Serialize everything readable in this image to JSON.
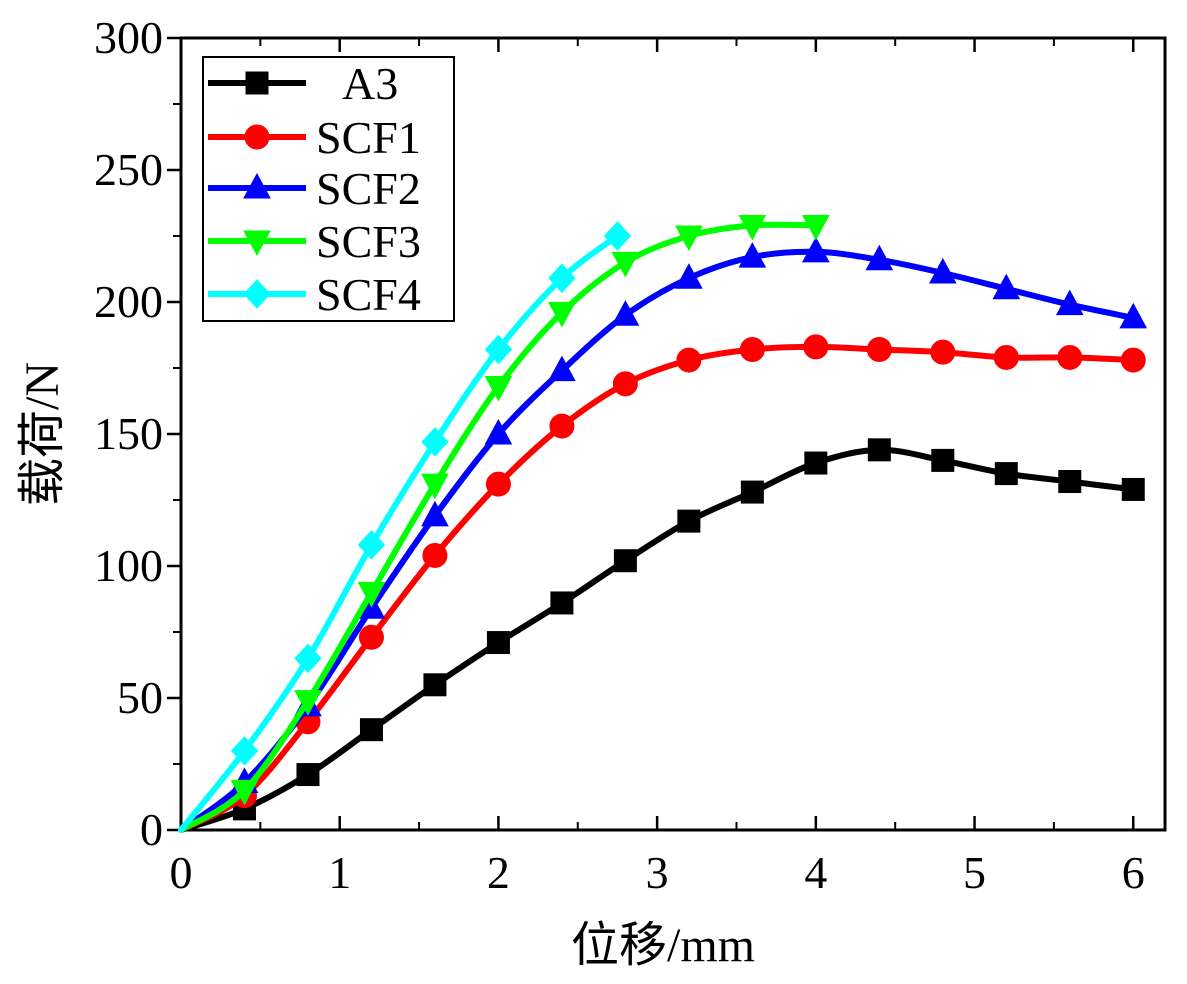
{
  "chart_data": {
    "type": "line",
    "title": "",
    "xlabel": "位移/mm",
    "ylabel": "载荷/N",
    "xlim": [
      0,
      6.2
    ],
    "ylim": [
      0,
      300
    ],
    "xticks": [
      0,
      1,
      2,
      3,
      4,
      5,
      6
    ],
    "yticks": [
      0,
      50,
      100,
      150,
      200,
      250,
      300
    ],
    "xtick_labels": [
      "0",
      "1",
      "2",
      "3",
      "4",
      "5",
      "6"
    ],
    "ytick_labels": [
      "0",
      "50",
      "100",
      "150",
      "200",
      "250",
      "300"
    ],
    "grid": false,
    "legend_position": "top-left",
    "series": [
      {
        "name": "A3",
        "color": "#000000",
        "marker": "square",
        "x": [
          0,
          0.4,
          0.8,
          1.2,
          1.6,
          2.0,
          2.4,
          2.8,
          3.2,
          3.6,
          4.0,
          4.4,
          4.8,
          5.2,
          5.6,
          6.0
        ],
        "y": [
          0,
          8,
          21,
          38,
          55,
          71,
          86,
          102,
          117,
          128,
          139,
          144,
          140,
          135,
          132,
          129
        ]
      },
      {
        "name": "SCF1",
        "color": "#ff0000",
        "marker": "circle",
        "x": [
          0,
          0.4,
          0.8,
          1.2,
          1.6,
          2.0,
          2.4,
          2.8,
          3.2,
          3.6,
          4.0,
          4.4,
          4.8,
          5.2,
          5.6,
          6.0
        ],
        "y": [
          0,
          13,
          41,
          73,
          104,
          131,
          153,
          169,
          178,
          182,
          183,
          182,
          181,
          179,
          179,
          178
        ]
      },
      {
        "name": "SCF2",
        "color": "#0000ff",
        "marker": "triangle-up",
        "x": [
          0,
          0.4,
          0.8,
          1.2,
          1.6,
          2.0,
          2.4,
          2.8,
          3.2,
          3.6,
          4.0,
          4.4,
          4.8,
          5.2,
          5.6,
          6.0
        ],
        "y": [
          0,
          18,
          47,
          84,
          119,
          150,
          174,
          195,
          209,
          217,
          219,
          216,
          211,
          205,
          199,
          194
        ]
      },
      {
        "name": "SCF3",
        "color": "#00ff00",
        "marker": "triangle-down",
        "x": [
          0,
          0.4,
          0.8,
          1.2,
          1.6,
          2.0,
          2.4,
          2.8,
          3.2,
          3.6,
          4.0
        ],
        "y": [
          0,
          15,
          49,
          90,
          131,
          168,
          196,
          215,
          225,
          229,
          229
        ]
      },
      {
        "name": "SCF4",
        "color": "#00ffff",
        "marker": "diamond",
        "x": [
          0,
          0.4,
          0.8,
          1.2,
          1.6,
          2.0,
          2.4,
          2.75
        ],
        "y": [
          0,
          30,
          65,
          108,
          147,
          182,
          209,
          225
        ]
      }
    ]
  }
}
